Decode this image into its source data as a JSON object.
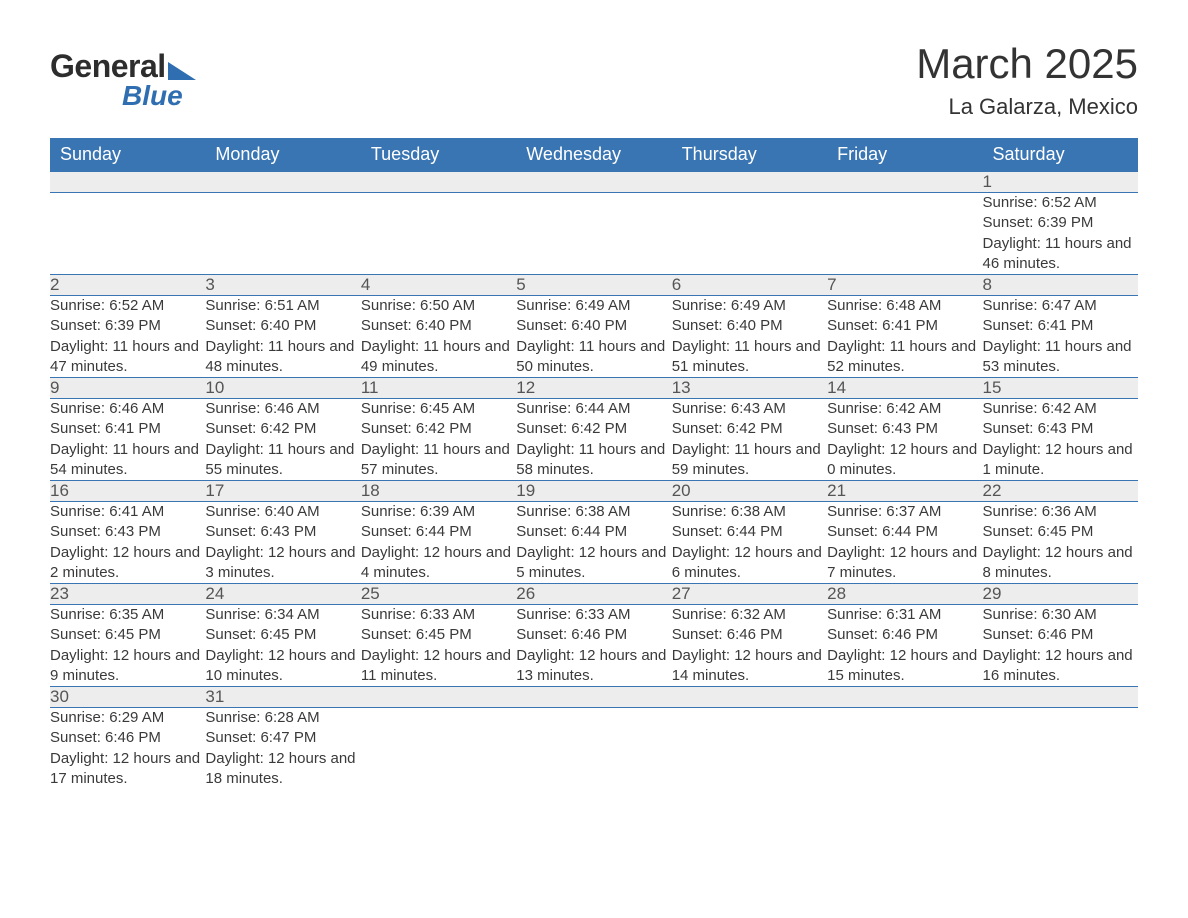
{
  "logo": {
    "word1": "General",
    "word2": "Blue"
  },
  "header": {
    "month_title": "March 2025",
    "location": "La Galarza, Mexico"
  },
  "style": {
    "header_bg": "#3a75b3",
    "header_fg": "#ffffff",
    "daynum_bg": "#ededed",
    "accent": "#2f6eb0",
    "title_fontsize": 42,
    "location_fontsize": 22,
    "th_fontsize": 18,
    "cell_fontsize": 15
  },
  "weekdays": [
    "Sunday",
    "Monday",
    "Tuesday",
    "Wednesday",
    "Thursday",
    "Friday",
    "Saturday"
  ],
  "weeks": [
    [
      null,
      null,
      null,
      null,
      null,
      null,
      {
        "n": "1",
        "sr": "Sunrise: 6:52 AM",
        "ss": "Sunset: 6:39 PM",
        "dl": "Daylight: 11 hours and 46 minutes."
      }
    ],
    [
      {
        "n": "2",
        "sr": "Sunrise: 6:52 AM",
        "ss": "Sunset: 6:39 PM",
        "dl": "Daylight: 11 hours and 47 minutes."
      },
      {
        "n": "3",
        "sr": "Sunrise: 6:51 AM",
        "ss": "Sunset: 6:40 PM",
        "dl": "Daylight: 11 hours and 48 minutes."
      },
      {
        "n": "4",
        "sr": "Sunrise: 6:50 AM",
        "ss": "Sunset: 6:40 PM",
        "dl": "Daylight: 11 hours and 49 minutes."
      },
      {
        "n": "5",
        "sr": "Sunrise: 6:49 AM",
        "ss": "Sunset: 6:40 PM",
        "dl": "Daylight: 11 hours and 50 minutes."
      },
      {
        "n": "6",
        "sr": "Sunrise: 6:49 AM",
        "ss": "Sunset: 6:40 PM",
        "dl": "Daylight: 11 hours and 51 minutes."
      },
      {
        "n": "7",
        "sr": "Sunrise: 6:48 AM",
        "ss": "Sunset: 6:41 PM",
        "dl": "Daylight: 11 hours and 52 minutes."
      },
      {
        "n": "8",
        "sr": "Sunrise: 6:47 AM",
        "ss": "Sunset: 6:41 PM",
        "dl": "Daylight: 11 hours and 53 minutes."
      }
    ],
    [
      {
        "n": "9",
        "sr": "Sunrise: 6:46 AM",
        "ss": "Sunset: 6:41 PM",
        "dl": "Daylight: 11 hours and 54 minutes."
      },
      {
        "n": "10",
        "sr": "Sunrise: 6:46 AM",
        "ss": "Sunset: 6:42 PM",
        "dl": "Daylight: 11 hours and 55 minutes."
      },
      {
        "n": "11",
        "sr": "Sunrise: 6:45 AM",
        "ss": "Sunset: 6:42 PM",
        "dl": "Daylight: 11 hours and 57 minutes."
      },
      {
        "n": "12",
        "sr": "Sunrise: 6:44 AM",
        "ss": "Sunset: 6:42 PM",
        "dl": "Daylight: 11 hours and 58 minutes."
      },
      {
        "n": "13",
        "sr": "Sunrise: 6:43 AM",
        "ss": "Sunset: 6:42 PM",
        "dl": "Daylight: 11 hours and 59 minutes."
      },
      {
        "n": "14",
        "sr": "Sunrise: 6:42 AM",
        "ss": "Sunset: 6:43 PM",
        "dl": "Daylight: 12 hours and 0 minutes."
      },
      {
        "n": "15",
        "sr": "Sunrise: 6:42 AM",
        "ss": "Sunset: 6:43 PM",
        "dl": "Daylight: 12 hours and 1 minute."
      }
    ],
    [
      {
        "n": "16",
        "sr": "Sunrise: 6:41 AM",
        "ss": "Sunset: 6:43 PM",
        "dl": "Daylight: 12 hours and 2 minutes."
      },
      {
        "n": "17",
        "sr": "Sunrise: 6:40 AM",
        "ss": "Sunset: 6:43 PM",
        "dl": "Daylight: 12 hours and 3 minutes."
      },
      {
        "n": "18",
        "sr": "Sunrise: 6:39 AM",
        "ss": "Sunset: 6:44 PM",
        "dl": "Daylight: 12 hours and 4 minutes."
      },
      {
        "n": "19",
        "sr": "Sunrise: 6:38 AM",
        "ss": "Sunset: 6:44 PM",
        "dl": "Daylight: 12 hours and 5 minutes."
      },
      {
        "n": "20",
        "sr": "Sunrise: 6:38 AM",
        "ss": "Sunset: 6:44 PM",
        "dl": "Daylight: 12 hours and 6 minutes."
      },
      {
        "n": "21",
        "sr": "Sunrise: 6:37 AM",
        "ss": "Sunset: 6:44 PM",
        "dl": "Daylight: 12 hours and 7 minutes."
      },
      {
        "n": "22",
        "sr": "Sunrise: 6:36 AM",
        "ss": "Sunset: 6:45 PM",
        "dl": "Daylight: 12 hours and 8 minutes."
      }
    ],
    [
      {
        "n": "23",
        "sr": "Sunrise: 6:35 AM",
        "ss": "Sunset: 6:45 PM",
        "dl": "Daylight: 12 hours and 9 minutes."
      },
      {
        "n": "24",
        "sr": "Sunrise: 6:34 AM",
        "ss": "Sunset: 6:45 PM",
        "dl": "Daylight: 12 hours and 10 minutes."
      },
      {
        "n": "25",
        "sr": "Sunrise: 6:33 AM",
        "ss": "Sunset: 6:45 PM",
        "dl": "Daylight: 12 hours and 11 minutes."
      },
      {
        "n": "26",
        "sr": "Sunrise: 6:33 AM",
        "ss": "Sunset: 6:46 PM",
        "dl": "Daylight: 12 hours and 13 minutes."
      },
      {
        "n": "27",
        "sr": "Sunrise: 6:32 AM",
        "ss": "Sunset: 6:46 PM",
        "dl": "Daylight: 12 hours and 14 minutes."
      },
      {
        "n": "28",
        "sr": "Sunrise: 6:31 AM",
        "ss": "Sunset: 6:46 PM",
        "dl": "Daylight: 12 hours and 15 minutes."
      },
      {
        "n": "29",
        "sr": "Sunrise: 6:30 AM",
        "ss": "Sunset: 6:46 PM",
        "dl": "Daylight: 12 hours and 16 minutes."
      }
    ],
    [
      {
        "n": "30",
        "sr": "Sunrise: 6:29 AM",
        "ss": "Sunset: 6:46 PM",
        "dl": "Daylight: 12 hours and 17 minutes."
      },
      {
        "n": "31",
        "sr": "Sunrise: 6:28 AM",
        "ss": "Sunset: 6:47 PM",
        "dl": "Daylight: 12 hours and 18 minutes."
      },
      null,
      null,
      null,
      null,
      null
    ]
  ]
}
